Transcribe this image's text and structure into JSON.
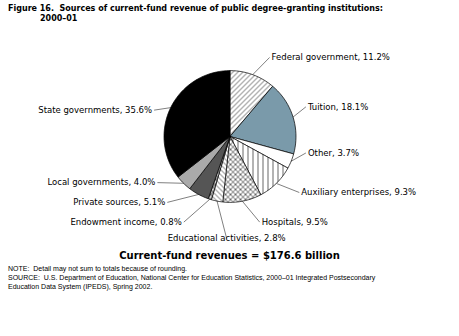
{
  "chart_data": {
    "type": "pie",
    "title": [
      "Figure 16.  Sources of current-fund revenue of public degree-granting institutions:",
      "2000–01"
    ],
    "subtitle": "Current-fund revenues = $176.6 billion",
    "notes": [
      "NOTE:  Detail may not sum to totals because of rounding.",
      "SOURCE:  U.S. Department of Education, National Center for Education Statistics, 2000–01 Integrated Postsecondary",
      "Education Data System (IPEDS), Spring 2002."
    ],
    "categories": [
      "Federal government, 11.2%",
      "Tuition, 18.1%",
      "Other, 3.7%",
      "Auxiliary enterprises, 9.3%",
      "Hospitals, 9.5%",
      "Educational activities, 2.8%",
      "Endowment income, 0.8%",
      "Private sources, 5.1%",
      "Local governments, 4.0%",
      "State governments, 35.6%"
    ],
    "values": [
      11.2,
      18.1,
      3.7,
      9.3,
      9.5,
      2.8,
      0.8,
      5.1,
      4.0,
      35.6
    ],
    "colors": [
      "white",
      "#7a9aaa",
      "white",
      "white",
      "white",
      "white",
      "#cccccc",
      "#555555",
      "#aaaaaa",
      "black"
    ]
  }
}
